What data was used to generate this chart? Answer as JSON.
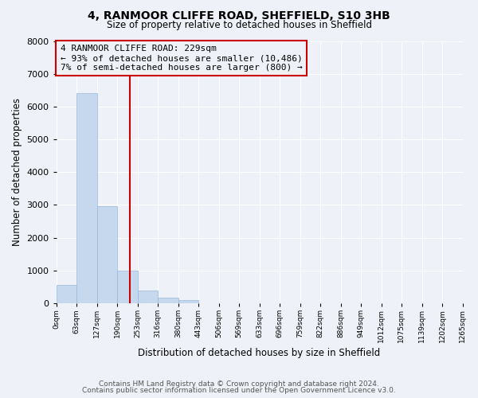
{
  "title": "4, RANMOOR CLIFFE ROAD, SHEFFIELD, S10 3HB",
  "subtitle": "Size of property relative to detached houses in Sheffield",
  "xlabel": "Distribution of detached houses by size in Sheffield",
  "ylabel": "Number of detached properties",
  "bar_edges": [
    0,
    63,
    127,
    190,
    253,
    316,
    380,
    443,
    506,
    569,
    633,
    696,
    759,
    822,
    886,
    949,
    1012,
    1075,
    1139,
    1202,
    1265
  ],
  "bar_heights": [
    560,
    6400,
    2950,
    1000,
    390,
    175,
    90,
    0,
    0,
    0,
    0,
    0,
    0,
    0,
    0,
    0,
    0,
    0,
    0,
    0
  ],
  "bar_color": "#c5d8ed",
  "bar_edgecolor": "#9ab8d8",
  "vline_x": 229,
  "vline_color": "#cc0000",
  "ylim": [
    0,
    8000
  ],
  "yticks": [
    0,
    1000,
    2000,
    3000,
    4000,
    5000,
    6000,
    7000,
    8000
  ],
  "annotation_box_text": "4 RANMOOR CLIFFE ROAD: 229sqm\n← 93% of detached houses are smaller (10,486)\n7% of semi-detached houses are larger (800) →",
  "annotation_box_color": "#cc0000",
  "footnote1": "Contains HM Land Registry data © Crown copyright and database right 2024.",
  "footnote2": "Contains public sector information licensed under the Open Government Licence v3.0.",
  "background_color": "#eef2f8",
  "grid_color": "#ffffff",
  "tick_labels": [
    "0sqm",
    "63sqm",
    "127sqm",
    "190sqm",
    "253sqm",
    "316sqm",
    "380sqm",
    "443sqm",
    "506sqm",
    "569sqm",
    "633sqm",
    "696sqm",
    "759sqm",
    "822sqm",
    "886sqm",
    "949sqm",
    "1012sqm",
    "1075sqm",
    "1139sqm",
    "1202sqm",
    "1265sqm"
  ]
}
